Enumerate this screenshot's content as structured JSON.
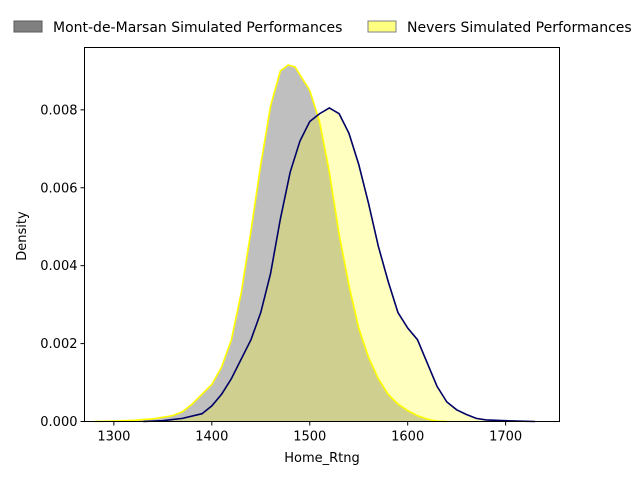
{
  "chart_data": {
    "type": "area",
    "title": "",
    "xlabel": "Home_Rtng",
    "ylabel": "Density",
    "xlim": [
      1270,
      1755
    ],
    "ylim": [
      0,
      0.0096
    ],
    "xticks": [
      1300,
      1400,
      1500,
      1600,
      1700
    ],
    "yticks": [
      0.0,
      0.002,
      0.004,
      0.006,
      0.008
    ],
    "ytick_labels": [
      "0.000",
      "0.002",
      "0.004",
      "0.006",
      "0.008"
    ],
    "grid": false,
    "legend_position": "top",
    "series": [
      {
        "name": "Mont-de-Marsan Simulated Performances",
        "fill_color": "#808080",
        "fill_opacity": 0.5,
        "line_color": "#ffff00",
        "points": [
          [
            1280,
            0
          ],
          [
            1300,
            1e-05
          ],
          [
            1320,
            3e-05
          ],
          [
            1340,
            7e-05
          ],
          [
            1360,
            0.00015
          ],
          [
            1370,
            0.00025
          ],
          [
            1380,
            0.00045
          ],
          [
            1390,
            0.0007
          ],
          [
            1400,
            0.00095
          ],
          [
            1410,
            0.0014
          ],
          [
            1420,
            0.0021
          ],
          [
            1430,
            0.0033
          ],
          [
            1440,
            0.0049
          ],
          [
            1450,
            0.0066
          ],
          [
            1460,
            0.0081
          ],
          [
            1470,
            0.009
          ],
          [
            1478,
            0.00915
          ],
          [
            1485,
            0.0091
          ],
          [
            1490,
            0.0089
          ],
          [
            1500,
            0.0085
          ],
          [
            1510,
            0.0077
          ],
          [
            1520,
            0.0064
          ],
          [
            1530,
            0.0048
          ],
          [
            1540,
            0.0035
          ],
          [
            1550,
            0.0024
          ],
          [
            1560,
            0.00165
          ],
          [
            1570,
            0.0011
          ],
          [
            1580,
            0.0007
          ],
          [
            1590,
            0.00045
          ],
          [
            1600,
            0.00028
          ],
          [
            1610,
            0.00015
          ],
          [
            1620,
            6e-05
          ],
          [
            1630,
            1e-05
          ],
          [
            1640,
            0
          ]
        ]
      },
      {
        "name": "Nevers Simulated Performances",
        "fill_color": "#ffff00",
        "fill_opacity": 0.25,
        "line_color": "#000066",
        "points": [
          [
            1330,
            0
          ],
          [
            1350,
            2e-05
          ],
          [
            1370,
            8e-05
          ],
          [
            1390,
            0.0002
          ],
          [
            1400,
            0.0004
          ],
          [
            1410,
            0.0007
          ],
          [
            1420,
            0.0011
          ],
          [
            1430,
            0.0016
          ],
          [
            1440,
            0.0021
          ],
          [
            1450,
            0.0028
          ],
          [
            1460,
            0.0038
          ],
          [
            1470,
            0.0052
          ],
          [
            1480,
            0.0064
          ],
          [
            1490,
            0.0072
          ],
          [
            1500,
            0.0077
          ],
          [
            1510,
            0.0079
          ],
          [
            1520,
            0.00805
          ],
          [
            1530,
            0.0079
          ],
          [
            1540,
            0.0074
          ],
          [
            1550,
            0.0066
          ],
          [
            1560,
            0.0056
          ],
          [
            1570,
            0.0045
          ],
          [
            1580,
            0.0036
          ],
          [
            1590,
            0.0028
          ],
          [
            1600,
            0.0024
          ],
          [
            1610,
            0.0021
          ],
          [
            1620,
            0.0015
          ],
          [
            1630,
            0.0009
          ],
          [
            1640,
            0.0005
          ],
          [
            1650,
            0.0003
          ],
          [
            1660,
            0.00018
          ],
          [
            1670,
            8e-05
          ],
          [
            1680,
            4e-05
          ],
          [
            1700,
            2e-05
          ],
          [
            1730,
            0
          ]
        ]
      }
    ]
  }
}
